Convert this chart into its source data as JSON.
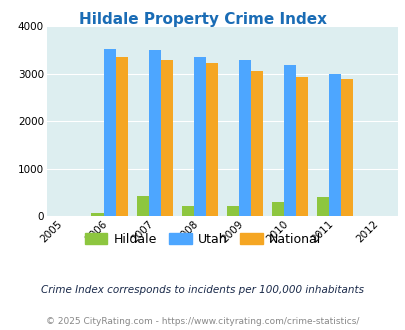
{
  "title": "Hildale Property Crime Index",
  "years": [
    2005,
    2006,
    2007,
    2008,
    2009,
    2010,
    2011,
    2012
  ],
  "data_years": [
    2006,
    2007,
    2008,
    2009,
    2010,
    2011
  ],
  "hildale": [
    75,
    430,
    210,
    210,
    290,
    410
  ],
  "utah": [
    3520,
    3510,
    3360,
    3290,
    3190,
    3000
  ],
  "national": [
    3360,
    3290,
    3220,
    3050,
    2940,
    2890
  ],
  "bar_colors": {
    "hildale": "#8dc63f",
    "utah": "#4da6ff",
    "national": "#f5a623"
  },
  "ylim": [
    0,
    4000
  ],
  "yticks": [
    0,
    1000,
    2000,
    3000,
    4000
  ],
  "plot_bg": "#ddeef0",
  "title_color": "#1a6cb5",
  "footer_note": "Crime Index corresponds to incidents per 100,000 inhabitants",
  "copyright": "© 2025 CityRating.com - https://www.cityrating.com/crime-statistics/",
  "legend_labels": [
    "Hildale",
    "Utah",
    "National"
  ],
  "bar_width": 0.27
}
